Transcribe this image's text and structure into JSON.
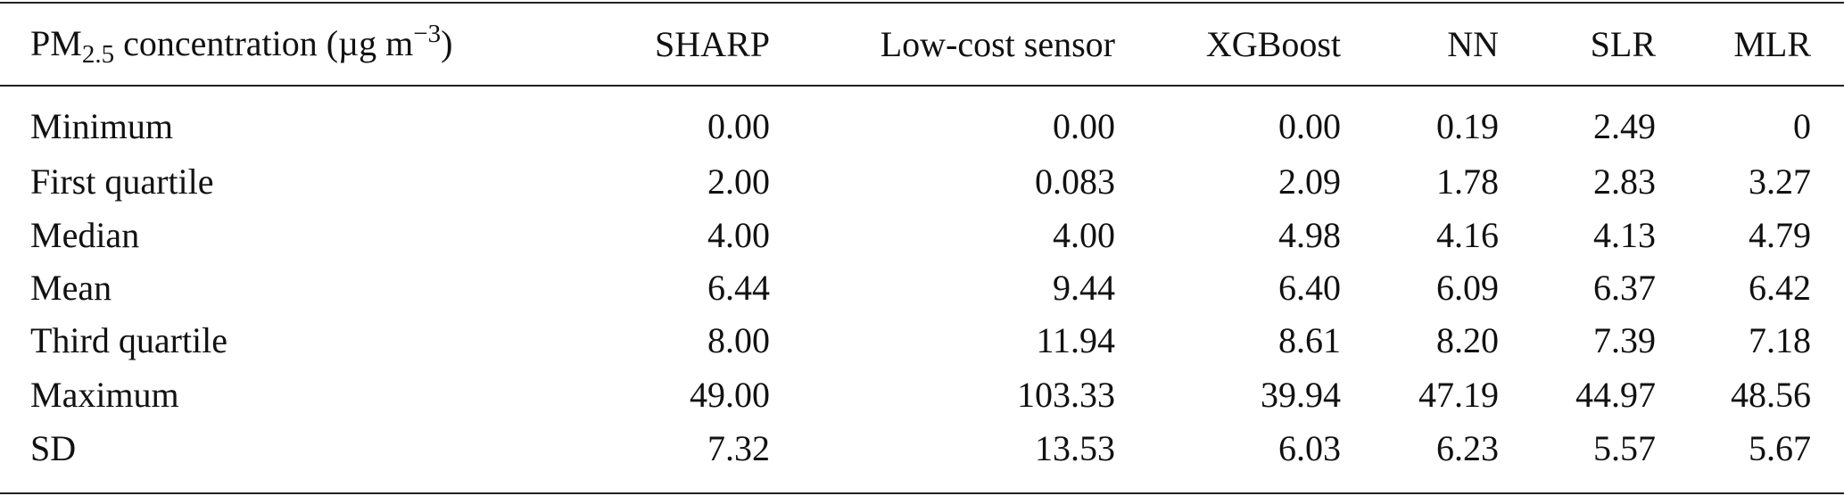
{
  "table": {
    "header": {
      "first": [
        "PM",
        "2.5",
        " concentration (µg m",
        "−3",
        ")"
      ],
      "columns": [
        "SHARP",
        "Low-cost sensor",
        "XGBoost",
        "NN",
        "SLR",
        "MLR"
      ]
    },
    "rows": [
      [
        "Minimum",
        "0.00",
        "0.00",
        "0.00",
        "0.19",
        "2.49",
        "0"
      ],
      [
        "First quartile",
        "2.00",
        "0.083",
        "2.09",
        "1.78",
        "2.83",
        "3.27"
      ],
      [
        "Median",
        "4.00",
        "4.00",
        "4.98",
        "4.16",
        "4.13",
        "4.79"
      ],
      [
        "Mean",
        "6.44",
        "9.44",
        "6.40",
        "6.09",
        "6.37",
        "6.42"
      ],
      [
        "Third quartile",
        "8.00",
        "11.94",
        "8.61",
        "8.20",
        "7.39",
        "7.18"
      ],
      [
        "Maximum",
        "49.00",
        "103.33",
        "39.94",
        "47.19",
        "44.97",
        "48.56"
      ],
      [
        "SD",
        "7.32",
        "13.53",
        "6.03",
        "6.23",
        "5.57",
        "5.67"
      ]
    ]
  }
}
